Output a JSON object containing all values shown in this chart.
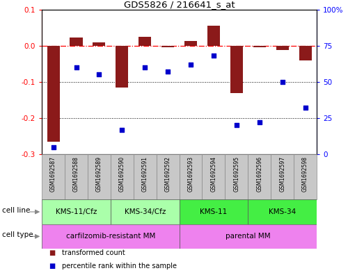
{
  "title": "GDS5826 / 216641_s_at",
  "samples": [
    "GSM1692587",
    "GSM1692588",
    "GSM1692589",
    "GSM1692590",
    "GSM1692591",
    "GSM1692592",
    "GSM1692593",
    "GSM1692594",
    "GSM1692595",
    "GSM1692596",
    "GSM1692597",
    "GSM1692598"
  ],
  "transformed_count": [
    -0.265,
    0.022,
    0.01,
    -0.115,
    0.025,
    -0.005,
    0.013,
    0.055,
    -0.13,
    -0.005,
    -0.012,
    -0.04
  ],
  "percentile_rank": [
    5,
    60,
    55,
    17,
    60,
    57,
    62,
    68,
    20,
    22,
    50,
    32
  ],
  "cell_line_labels": [
    "KMS-11/Cfz",
    "KMS-34/Cfz",
    "KMS-11",
    "KMS-34"
  ],
  "cell_line_colors": [
    "#AAFFAA",
    "#AAFFAA",
    "#44EE44",
    "#44EE44"
  ],
  "cell_line_starts": [
    0,
    3,
    6,
    9
  ],
  "cell_line_ends": [
    3,
    6,
    9,
    12
  ],
  "cell_type_labels": [
    "carfilzomib-resistant MM",
    "parental MM"
  ],
  "cell_type_color": "#EE82EE",
  "cell_type_starts": [
    0,
    6
  ],
  "cell_type_ends": [
    6,
    12
  ],
  "bar_color": "#8B1A1A",
  "dot_color": "#0000CC",
  "left_ylim": [
    -0.3,
    0.1
  ],
  "right_ylim": [
    0,
    100
  ],
  "left_yticks": [
    -0.3,
    -0.2,
    -0.1,
    0.0,
    0.1
  ],
  "right_yticks": [
    0,
    25,
    50,
    75,
    100
  ],
  "right_yticklabels": [
    "0",
    "25",
    "50",
    "75",
    "100%"
  ],
  "dotted_lines": [
    -0.1,
    -0.2
  ],
  "gsm_bg_color": "#C8C8C8",
  "background_color": "#ffffff"
}
